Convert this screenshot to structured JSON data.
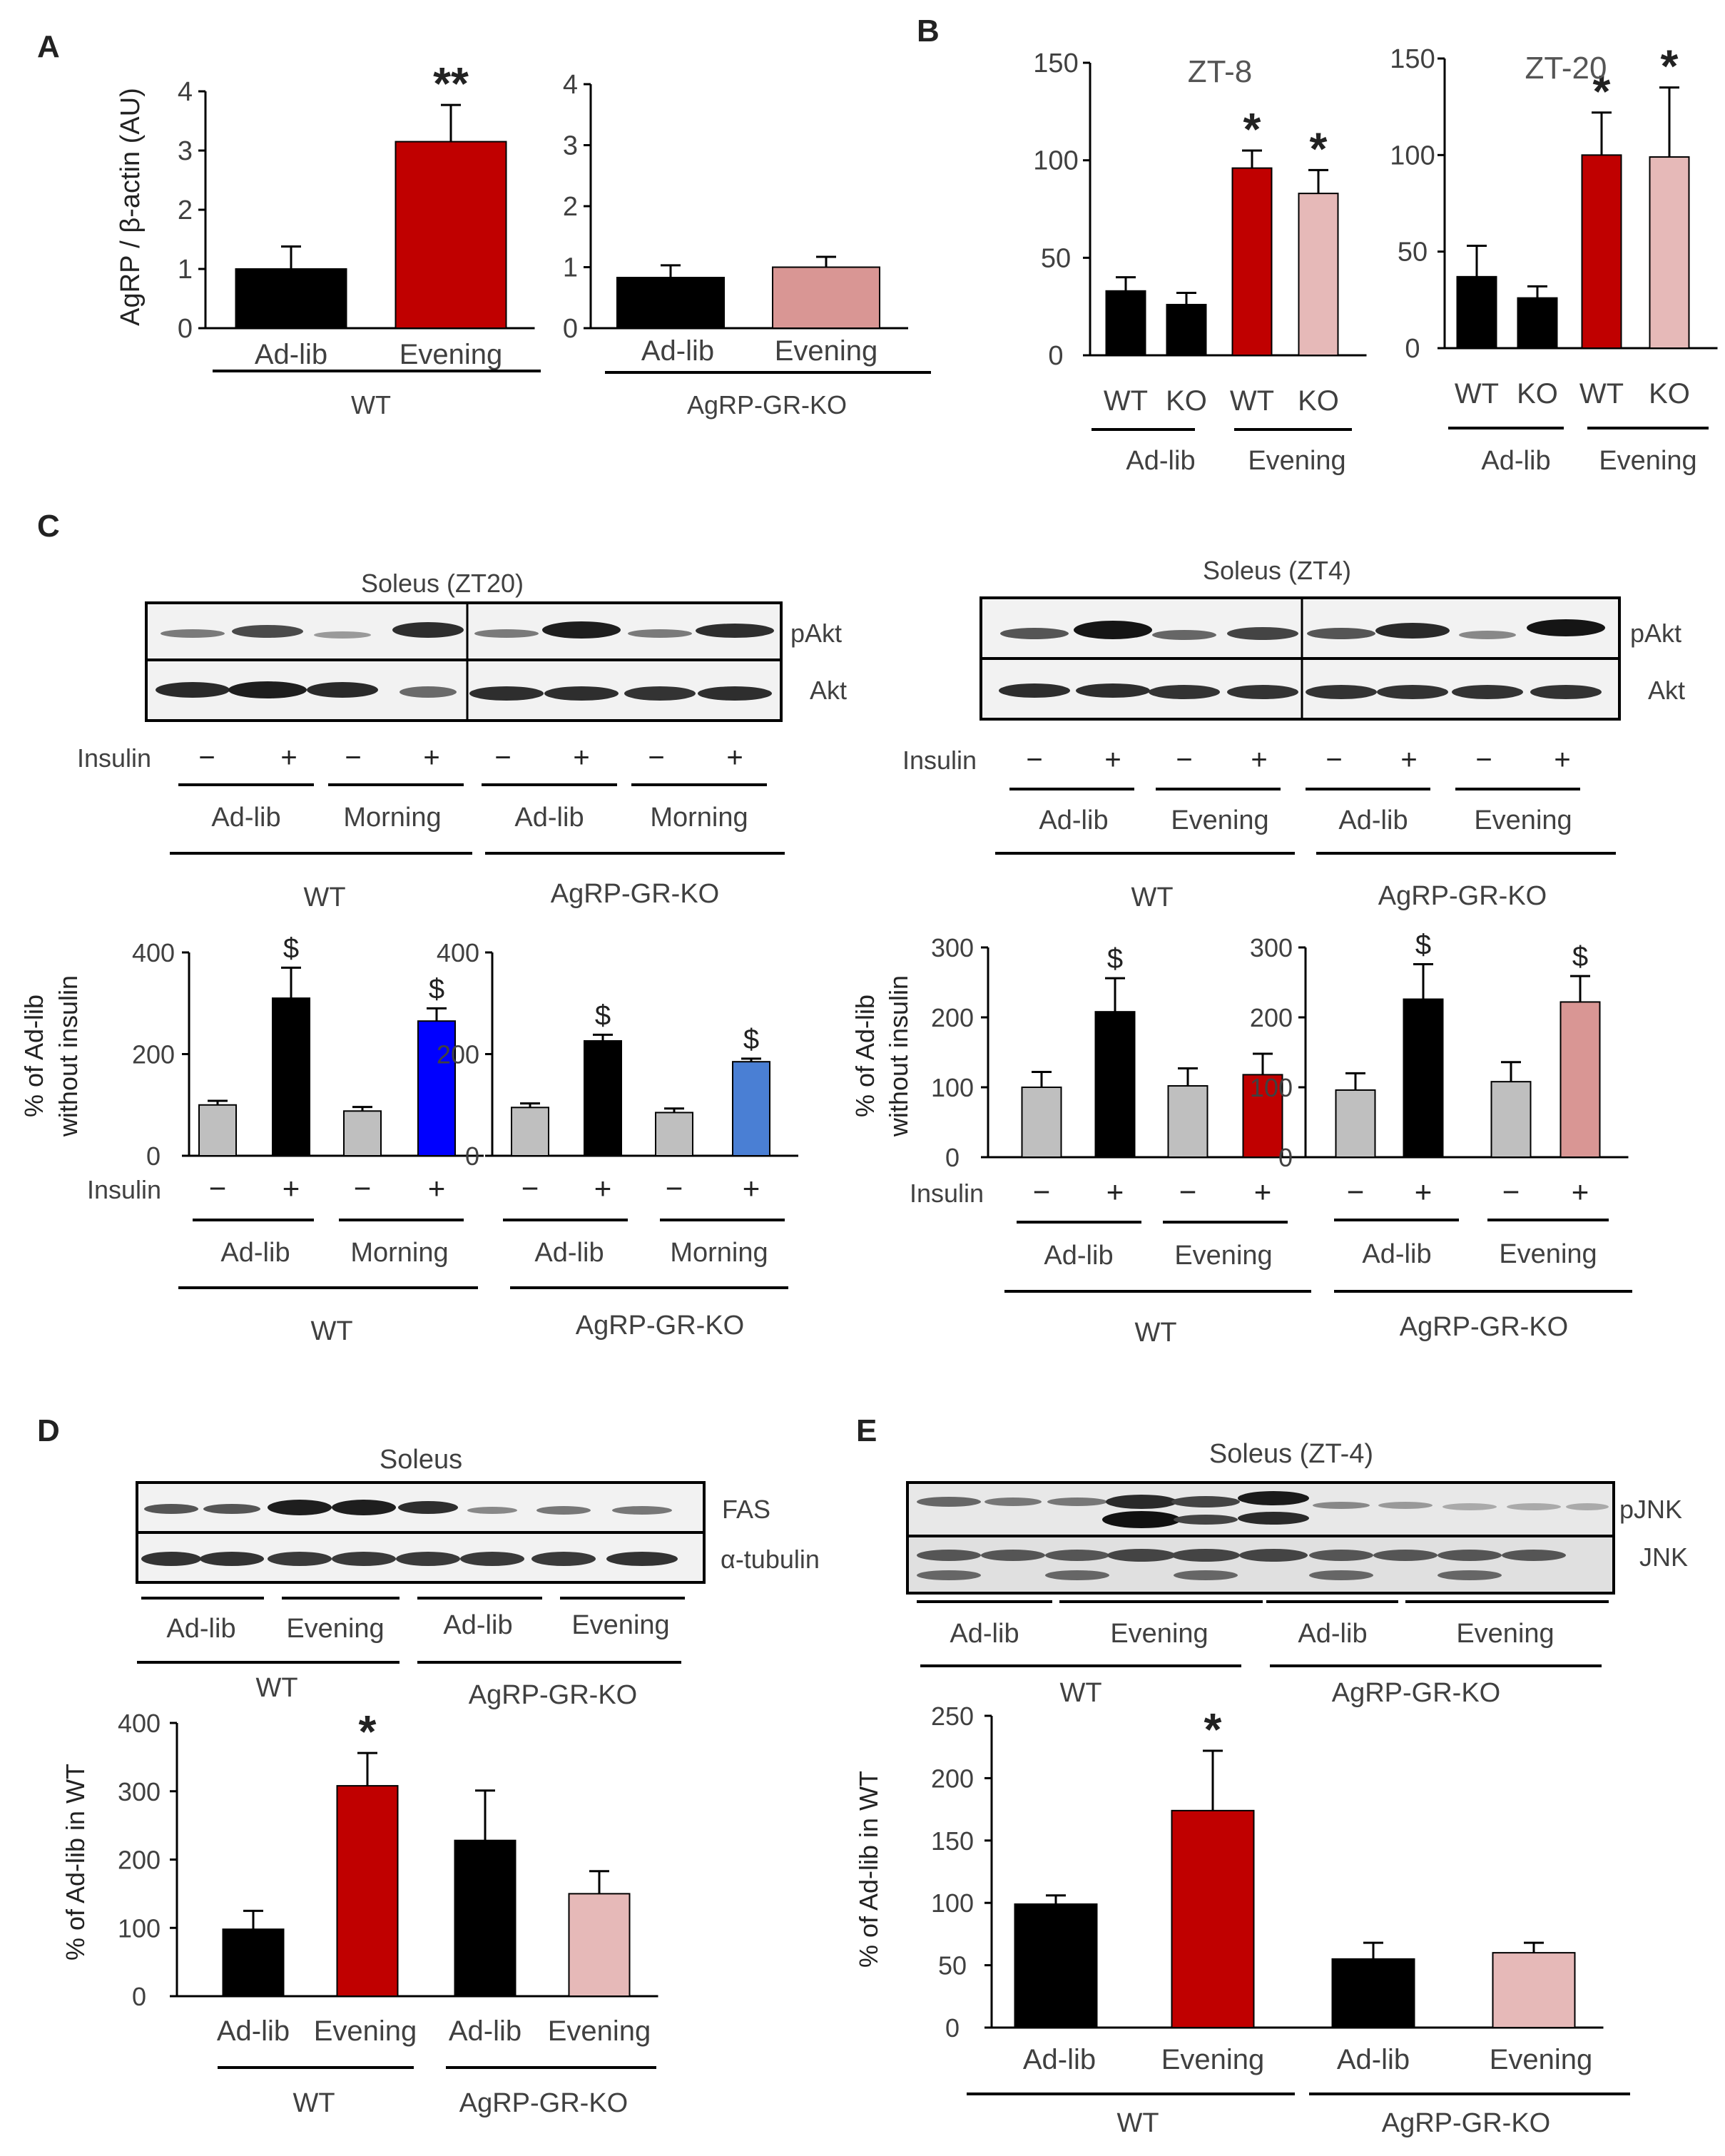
{
  "figure": {
    "panels": {
      "A": "A",
      "B": "B",
      "C": "C",
      "D": "D",
      "E": "E"
    }
  },
  "colors": {
    "black": "#000000",
    "red": "#c00000",
    "pink": "#d99694",
    "lightpink": "#e6b9b8",
    "gray": "#bfbfbf",
    "blue": "#0000ff",
    "lightblue": "#4a7fd4",
    "text": "#404040"
  },
  "blots": {
    "c_left": {
      "title": "Soleus (ZT20)",
      "rows": [
        "pAkt",
        "Akt"
      ],
      "insulin_label": "Insulin",
      "signs": [
        "−",
        "+",
        "−",
        "+",
        "−",
        "+",
        "−",
        "+"
      ],
      "groups": [
        "Ad-lib",
        "Morning",
        "Ad-lib",
        "Morning"
      ],
      "genotypes": [
        "WT",
        "AgRP-GR-KO"
      ]
    },
    "c_right": {
      "title": "Soleus (ZT4)",
      "rows": [
        "pAkt",
        "Akt"
      ],
      "insulin_label": "Insulin",
      "signs": [
        "−",
        "+",
        "−",
        "+",
        "−",
        "+",
        "−",
        "+"
      ],
      "groups": [
        "Ad-lib",
        "Evening",
        "Ad-lib",
        "Evening"
      ],
      "genotypes": [
        "WT",
        "AgRP-GR-KO"
      ]
    },
    "d": {
      "title": "Soleus",
      "rows": [
        "FAS",
        "α-tubulin"
      ],
      "groups": [
        "Ad-lib",
        "Evening",
        "Ad-lib",
        "Evening"
      ],
      "genotypes": [
        "WT",
        "AgRP-GR-KO"
      ]
    },
    "e": {
      "title": "Soleus (ZT-4)",
      "rows": [
        "pJNK",
        "JNK"
      ],
      "groups": [
        "Ad-lib",
        "Evening",
        "Ad-lib",
        "Evening"
      ],
      "genotypes": [
        "WT",
        "AgRP-GR-KO"
      ]
    }
  },
  "chart_data": [
    {
      "id": "A1",
      "panel": "A",
      "type": "bar",
      "ylabel": "AgRP / β-actin (AU)",
      "ylim": [
        0,
        4
      ],
      "yticks": [
        0,
        1,
        2,
        3,
        4
      ],
      "categories": [
        "Ad-lib",
        "Evening"
      ],
      "values": [
        1.0,
        3.15
      ],
      "errors": [
        0.38,
        0.62
      ],
      "colors": [
        "#000000",
        "#c00000"
      ],
      "marks": [
        "",
        "**"
      ],
      "genotype": "WT"
    },
    {
      "id": "A2",
      "panel": "A",
      "type": "bar",
      "ylabel": "",
      "ylim": [
        0,
        4
      ],
      "yticks": [
        0,
        1,
        2,
        3,
        4
      ],
      "categories": [
        "Ad-lib",
        "Evening"
      ],
      "values": [
        0.83,
        1.0
      ],
      "errors": [
        0.2,
        0.17
      ],
      "colors": [
        "#000000",
        "#d99694"
      ],
      "marks": [
        "",
        ""
      ],
      "genotype": "AgRP-GR-KO"
    },
    {
      "id": "B1",
      "panel": "B",
      "type": "bar",
      "title": "ZT-8",
      "ylim": [
        0,
        150
      ],
      "yticks": [
        0,
        50,
        100,
        150
      ],
      "categories": [
        "WT",
        "KO",
        "WT",
        "KO"
      ],
      "values": [
        33,
        26,
        96,
        83
      ],
      "errors": [
        7,
        6,
        9,
        12
      ],
      "colors": [
        "#000000",
        "#000000",
        "#c00000",
        "#e6b9b8"
      ],
      "marks": [
        "",
        "",
        "*",
        "*"
      ],
      "groups": [
        "Ad-lib",
        "Evening"
      ]
    },
    {
      "id": "B2",
      "panel": "B",
      "type": "bar",
      "title": "ZT-20",
      "ylim": [
        0,
        150
      ],
      "yticks": [
        0,
        50,
        100,
        150
      ],
      "categories": [
        "WT",
        "KO",
        "WT",
        "KO"
      ],
      "values": [
        37,
        26,
        100,
        99
      ],
      "errors": [
        16,
        6,
        22,
        36
      ],
      "colors": [
        "#000000",
        "#000000",
        "#c00000",
        "#e6b9b8"
      ],
      "marks": [
        "",
        "",
        "*",
        "*"
      ],
      "groups": [
        "Ad-lib",
        "Evening"
      ]
    },
    {
      "id": "C1",
      "panel": "C",
      "type": "bar",
      "ylabel": "% of Ad-lib without insulin",
      "ylim": [
        0,
        400
      ],
      "yticks": [
        0,
        200,
        400
      ],
      "insulin_label": "Insulin",
      "signs": [
        "−",
        "+",
        "−",
        "+"
      ],
      "groups": [
        "Ad-lib",
        "Morning"
      ],
      "genotype": "WT",
      "values": [
        100,
        310,
        88,
        265
      ],
      "errors": [
        8,
        60,
        8,
        25
      ],
      "colors": [
        "#bfbfbf",
        "#000000",
        "#bfbfbf",
        "#0000ff"
      ],
      "marks": [
        "",
        "$",
        "",
        "$"
      ]
    },
    {
      "id": "C2",
      "panel": "C",
      "type": "bar",
      "ylim": [
        0,
        400
      ],
      "yticks": [
        0,
        200,
        400
      ],
      "insulin_label": "",
      "signs": [
        "−",
        "+",
        "−",
        "+"
      ],
      "groups": [
        "Ad-lib",
        "Morning"
      ],
      "genotype": "AgRP-GR-KO",
      "values": [
        95,
        226,
        85,
        185
      ],
      "errors": [
        8,
        12,
        8,
        6
      ],
      "colors": [
        "#bfbfbf",
        "#000000",
        "#bfbfbf",
        "#4a7fd4"
      ],
      "marks": [
        "",
        "$",
        "",
        "$"
      ]
    },
    {
      "id": "C3",
      "panel": "C",
      "type": "bar",
      "ylabel": "% of Ad-lib without insulin",
      "ylim": [
        0,
        300
      ],
      "yticks": [
        0,
        100,
        200,
        300
      ],
      "insulin_label": "Insulin",
      "signs": [
        "−",
        "+",
        "−",
        "+"
      ],
      "groups": [
        "Ad-lib",
        "Evening"
      ],
      "genotype": "WT",
      "values": [
        100,
        208,
        102,
        118
      ],
      "errors": [
        22,
        48,
        25,
        30
      ],
      "colors": [
        "#bfbfbf",
        "#000000",
        "#bfbfbf",
        "#c00000"
      ],
      "marks": [
        "",
        "$",
        "",
        ""
      ]
    },
    {
      "id": "C4",
      "panel": "C",
      "type": "bar",
      "ylim": [
        0,
        300
      ],
      "yticks": [
        0,
        100,
        200,
        300
      ],
      "insulin_label": "",
      "signs": [
        "−",
        "+",
        "−",
        "+"
      ],
      "groups": [
        "Ad-lib",
        "Evening"
      ],
      "genotype": "AgRP-GR-KO",
      "values": [
        96,
        226,
        108,
        222
      ],
      "errors": [
        24,
        50,
        28,
        37
      ],
      "colors": [
        "#bfbfbf",
        "#000000",
        "#bfbfbf",
        "#d99694"
      ],
      "marks": [
        "",
        "$",
        "",
        "$"
      ]
    },
    {
      "id": "D",
      "panel": "D",
      "type": "bar",
      "ylabel": "% of Ad-lib in WT",
      "ylim": [
        0,
        400
      ],
      "yticks": [
        0,
        100,
        200,
        300,
        400
      ],
      "categories": [
        "Ad-lib",
        "Evening",
        "Ad-lib",
        "Evening"
      ],
      "values": [
        98,
        308,
        228,
        150
      ],
      "errors": [
        27,
        48,
        73,
        33
      ],
      "colors": [
        "#000000",
        "#c00000",
        "#000000",
        "#e6b9b8"
      ],
      "marks": [
        "",
        "*",
        "",
        ""
      ],
      "genotypes": [
        "WT",
        "AgRP-GR-KO"
      ]
    },
    {
      "id": "E",
      "panel": "E",
      "type": "bar",
      "ylabel": "% of Ad-lib in WT",
      "ylim": [
        0,
        250
      ],
      "yticks": [
        0,
        50,
        100,
        150,
        200,
        250
      ],
      "categories": [
        "Ad-lib",
        "Evening",
        "Ad-lib",
        "Evening"
      ],
      "values": [
        99,
        174,
        55,
        60
      ],
      "errors": [
        7,
        48,
        13,
        8
      ],
      "colors": [
        "#000000",
        "#c00000",
        "#000000",
        "#e6b9b8"
      ],
      "marks": [
        "",
        "*",
        "",
        ""
      ],
      "genotypes": [
        "WT",
        "AgRP-GR-KO"
      ]
    }
  ]
}
